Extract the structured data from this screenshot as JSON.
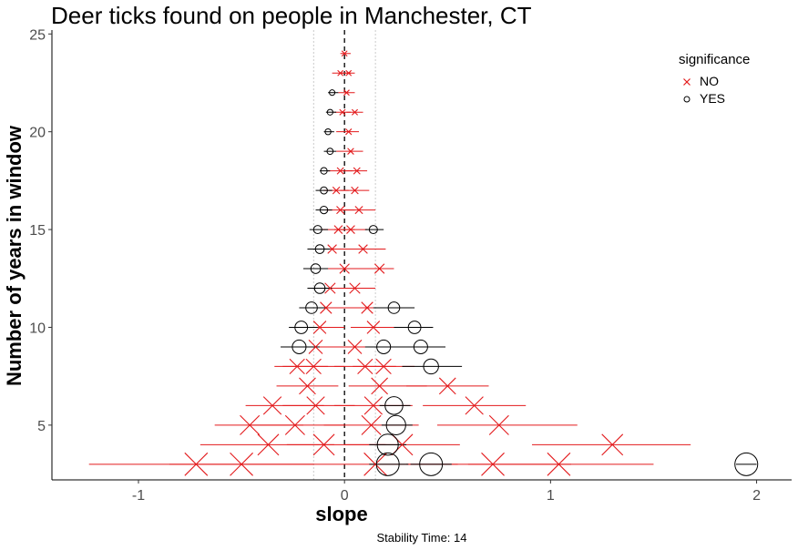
{
  "chart_data": {
    "type": "scatter",
    "title": "Deer ticks found on people in Manchester, CT",
    "xlabel": "slope",
    "ylabel": "Number of years in window",
    "caption": "Stability Time: 14",
    "xlim": [
      -1.42,
      2.17
    ],
    "ylim": [
      2.2,
      25.2
    ],
    "x_ticks": [
      -1,
      0,
      1,
      2
    ],
    "y_ticks": [
      5,
      10,
      15,
      20,
      25
    ],
    "reference_lines": {
      "zero": 0,
      "dotted": [
        -0.15,
        0.15
      ]
    },
    "grid": false,
    "legend": {
      "title": "significance",
      "position": "top-right",
      "entries": [
        {
          "label": "NO",
          "color": "#e31a1c",
          "shape": "cross"
        },
        {
          "label": "YES",
          "color": "#000000",
          "shape": "circle"
        }
      ]
    },
    "series": [
      {
        "name": "NO",
        "color": "#e31a1c",
        "points": [
          {
            "x": 0.0,
            "y": 24,
            "lo": -0.02,
            "hi": 0.03
          },
          {
            "x": -0.02,
            "y": 23,
            "lo": -0.06,
            "hi": 0.03
          },
          {
            "x": 0.02,
            "y": 23,
            "lo": -0.02,
            "hi": 0.05
          },
          {
            "x": 0.01,
            "y": 22,
            "lo": -0.03,
            "hi": 0.05
          },
          {
            "x": -0.01,
            "y": 21,
            "lo": -0.05,
            "hi": 0.03
          },
          {
            "x": 0.05,
            "y": 21,
            "lo": 0.01,
            "hi": 0.09
          },
          {
            "x": 0.02,
            "y": 20,
            "lo": -0.04,
            "hi": 0.07
          },
          {
            "x": 0.03,
            "y": 19,
            "lo": -0.04,
            "hi": 0.09
          },
          {
            "x": 0.06,
            "y": 18,
            "lo": -0.01,
            "hi": 0.11
          },
          {
            "x": -0.02,
            "y": 18,
            "lo": -0.08,
            "hi": 0.04
          },
          {
            "x": 0.05,
            "y": 17,
            "lo": -0.02,
            "hi": 0.12
          },
          {
            "x": -0.04,
            "y": 17,
            "lo": -0.1,
            "hi": 0.02
          },
          {
            "x": 0.07,
            "y": 16,
            "lo": -0.01,
            "hi": 0.15
          },
          {
            "x": -0.02,
            "y": 16,
            "lo": -0.09,
            "hi": 0.05
          },
          {
            "x": -0.03,
            "y": 15,
            "lo": -0.11,
            "hi": 0.05
          },
          {
            "x": 0.03,
            "y": 15,
            "lo": -0.05,
            "hi": 0.11
          },
          {
            "x": -0.06,
            "y": 14,
            "lo": -0.14,
            "hi": 0.02
          },
          {
            "x": 0.09,
            "y": 14,
            "lo": 0.0,
            "hi": 0.2
          },
          {
            "x": 0.0,
            "y": 13,
            "lo": -0.1,
            "hi": 0.1
          },
          {
            "x": 0.17,
            "y": 13,
            "lo": 0.07,
            "hi": 0.24
          },
          {
            "x": -0.07,
            "y": 12,
            "lo": -0.16,
            "hi": 0.03
          },
          {
            "x": 0.05,
            "y": 12,
            "lo": -0.05,
            "hi": 0.15
          },
          {
            "x": -0.09,
            "y": 11,
            "lo": -0.19,
            "hi": 0.01
          },
          {
            "x": 0.11,
            "y": 11,
            "lo": 0.0,
            "hi": 0.22
          },
          {
            "x": -0.12,
            "y": 10,
            "lo": -0.23,
            "hi": 0.0
          },
          {
            "x": 0.14,
            "y": 10,
            "lo": 0.03,
            "hi": 0.25
          },
          {
            "x": -0.14,
            "y": 9,
            "lo": -0.27,
            "hi": -0.01
          },
          {
            "x": 0.05,
            "y": 9,
            "lo": -0.08,
            "hi": 0.18
          },
          {
            "x": -0.23,
            "y": 8,
            "lo": -0.34,
            "hi": -0.08
          },
          {
            "x": -0.15,
            "y": 8,
            "lo": -0.3,
            "hi": 0.0
          },
          {
            "x": 0.1,
            "y": 8,
            "lo": -0.05,
            "hi": 0.25
          },
          {
            "x": 0.19,
            "y": 8,
            "lo": 0.04,
            "hi": 0.34
          },
          {
            "x": -0.18,
            "y": 7,
            "lo": -0.33,
            "hi": -0.03
          },
          {
            "x": 0.17,
            "y": 7,
            "lo": 0.02,
            "hi": 0.4
          },
          {
            "x": 0.5,
            "y": 7,
            "lo": 0.3,
            "hi": 0.7
          },
          {
            "x": -0.35,
            "y": 6,
            "lo": -0.48,
            "hi": -0.1
          },
          {
            "x": -0.14,
            "y": 6,
            "lo": -0.3,
            "hi": 0.05
          },
          {
            "x": 0.14,
            "y": 6,
            "lo": -0.05,
            "hi": 0.33
          },
          {
            "x": 0.63,
            "y": 6,
            "lo": 0.38,
            "hi": 0.88
          },
          {
            "x": -0.46,
            "y": 5,
            "lo": -0.63,
            "hi": -0.2
          },
          {
            "x": -0.24,
            "y": 5,
            "lo": -0.46,
            "hi": 0.0
          },
          {
            "x": 0.13,
            "y": 5,
            "lo": -0.1,
            "hi": 0.36
          },
          {
            "x": 0.75,
            "y": 5,
            "lo": 0.45,
            "hi": 1.13
          },
          {
            "x": -0.37,
            "y": 4,
            "lo": -0.7,
            "hi": -0.05
          },
          {
            "x": -0.1,
            "y": 4,
            "lo": -0.28,
            "hi": 0.2
          },
          {
            "x": 0.28,
            "y": 4,
            "lo": 0.0,
            "hi": 0.56
          },
          {
            "x": 1.3,
            "y": 4,
            "lo": 0.91,
            "hi": 1.68
          },
          {
            "x": -0.72,
            "y": 3,
            "lo": -1.24,
            "hi": -0.25
          },
          {
            "x": -0.5,
            "y": 3,
            "lo": -0.85,
            "hi": -0.15
          },
          {
            "x": 0.15,
            "y": 3,
            "lo": -0.25,
            "hi": 0.55
          },
          {
            "x": 0.72,
            "y": 3,
            "lo": 0.3,
            "hi": 1.1
          },
          {
            "x": 1.04,
            "y": 3,
            "lo": 0.6,
            "hi": 1.5
          }
        ]
      },
      {
        "name": "YES",
        "color": "#000000",
        "points": [
          {
            "x": -0.06,
            "y": 22,
            "lo": -0.08,
            "hi": -0.03
          },
          {
            "x": -0.07,
            "y": 21,
            "lo": -0.09,
            "hi": -0.04
          },
          {
            "x": -0.08,
            "y": 20,
            "lo": -0.1,
            "hi": -0.05
          },
          {
            "x": -0.07,
            "y": 19,
            "lo": -0.1,
            "hi": -0.04
          },
          {
            "x": -0.1,
            "y": 18,
            "lo": -0.12,
            "hi": -0.07
          },
          {
            "x": -0.1,
            "y": 17,
            "lo": -0.14,
            "hi": -0.06
          },
          {
            "x": -0.1,
            "y": 16,
            "lo": -0.14,
            "hi": -0.06
          },
          {
            "x": -0.13,
            "y": 15,
            "lo": -0.17,
            "hi": -0.08
          },
          {
            "x": 0.14,
            "y": 15,
            "lo": 0.1,
            "hi": 0.19
          },
          {
            "x": -0.12,
            "y": 14,
            "lo": -0.18,
            "hi": -0.07
          },
          {
            "x": -0.14,
            "y": 13,
            "lo": -0.2,
            "hi": -0.08
          },
          {
            "x": -0.12,
            "y": 12,
            "lo": -0.18,
            "hi": -0.06
          },
          {
            "x": -0.16,
            "y": 11,
            "lo": -0.22,
            "hi": -0.09
          },
          {
            "x": 0.24,
            "y": 11,
            "lo": 0.14,
            "hi": 0.34
          },
          {
            "x": -0.21,
            "y": 10,
            "lo": -0.27,
            "hi": -0.13
          },
          {
            "x": 0.34,
            "y": 10,
            "lo": 0.24,
            "hi": 0.43
          },
          {
            "x": -0.22,
            "y": 9,
            "lo": -0.31,
            "hi": -0.12
          },
          {
            "x": 0.19,
            "y": 9,
            "lo": 0.1,
            "hi": 0.3
          },
          {
            "x": 0.37,
            "y": 9,
            "lo": 0.25,
            "hi": 0.49
          },
          {
            "x": 0.42,
            "y": 8,
            "lo": 0.28,
            "hi": 0.57
          },
          {
            "x": 0.24,
            "y": 6,
            "lo": 0.17,
            "hi": 0.32
          },
          {
            "x": 0.25,
            "y": 5,
            "lo": 0.18,
            "hi": 0.33
          },
          {
            "x": 0.21,
            "y": 4,
            "lo": 0.12,
            "hi": 0.3
          },
          {
            "x": 0.21,
            "y": 3,
            "lo": 0.12,
            "hi": 0.31
          },
          {
            "x": 0.42,
            "y": 3,
            "lo": 0.32,
            "hi": 0.52
          },
          {
            "x": 1.95,
            "y": 3,
            "lo": 1.9,
            "hi": 2.0
          }
        ]
      }
    ]
  }
}
